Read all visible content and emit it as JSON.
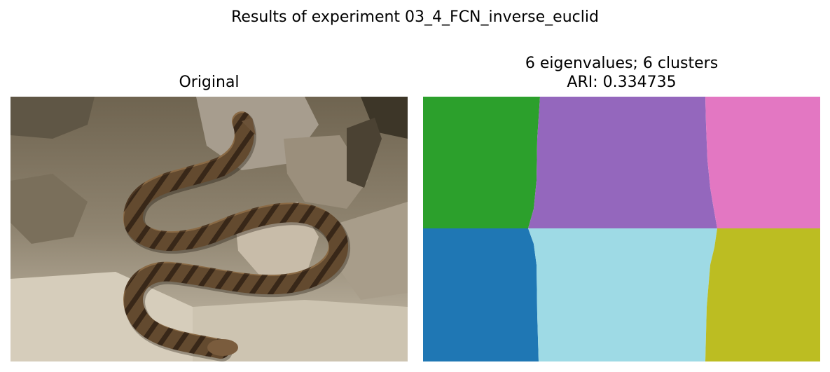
{
  "figure": {
    "suptitle": "Results of experiment 03_4_FCN_inverse_euclid"
  },
  "panels": [
    {
      "title": "Original",
      "image": "rattlesnake-on-rocks-photo"
    },
    {
      "title_line1": "6 eigenvalues; 6 clusters",
      "title_line2": "ARI: 0.334735",
      "image": "segmentation-map",
      "cluster_colors": [
        "#2ca02c",
        "#9467bd",
        "#e377c2",
        "#1f77b4",
        "#9edae5",
        "#bcbd22"
      ]
    }
  ]
}
